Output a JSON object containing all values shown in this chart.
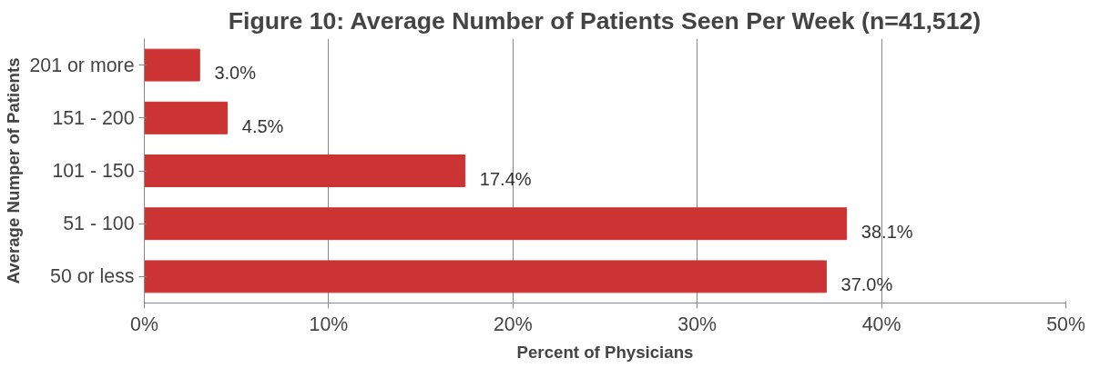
{
  "chart_data": {
    "type": "bar",
    "orientation": "horizontal",
    "title": "Figure 10: Average Number of Patients Seen Per Week (n=41,512)",
    "xlabel": "Percent of Physicians",
    "ylabel": "Average Numper of Patients",
    "categories": [
      "201 or more",
      "151 - 200",
      "101 - 150",
      "51 - 100",
      "50 or less"
    ],
    "values": [
      3.0,
      4.5,
      17.4,
      38.1,
      37.0
    ],
    "value_labels": [
      "3.0%",
      "4.5%",
      "17.4%",
      "38.1%",
      "37.0%"
    ],
    "color": "#cc3333",
    "xlim": [
      0,
      50
    ],
    "xticks": [
      {
        "value": 0,
        "label": "0%"
      },
      {
        "value": 10,
        "label": "10%"
      },
      {
        "value": 20,
        "label": "20%"
      },
      {
        "value": 30,
        "label": "30%"
      },
      {
        "value": 40,
        "label": "40%"
      },
      {
        "value": 50,
        "label": "50%"
      }
    ],
    "grid": "x"
  }
}
